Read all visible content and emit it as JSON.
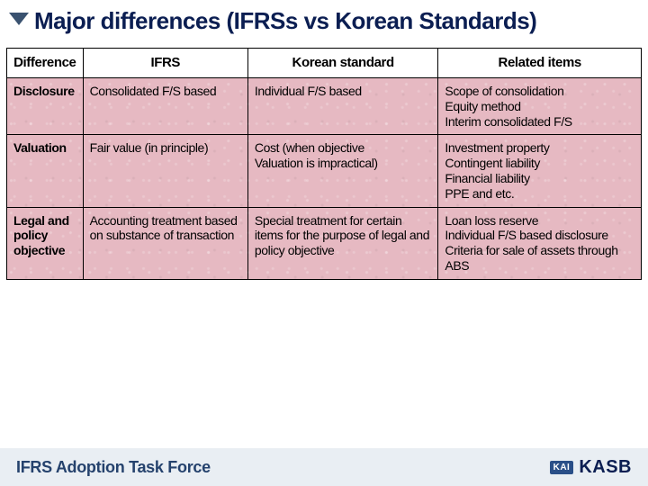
{
  "title": "Major differences (IFRSs vs Korean Standards)",
  "table": {
    "columns": [
      "Difference",
      "IFRS",
      "Korean standard",
      "Related items"
    ],
    "rows": [
      {
        "c0": "Disclosure",
        "c1": "Consolidated F/S based",
        "c2": "Individual F/S based",
        "c3": "Scope of consolidation\nEquity method\nInterim consolidated F/S"
      },
      {
        "c0": "Valuation",
        "c1": "Fair value (in principle)",
        "c2": "Cost (when objective\nValuation is impractical)",
        "c3": "Investment property\nContingent liability\nFinancial liability\nPPE and etc."
      },
      {
        "c0": "Legal and policy objective",
        "c1": "Accounting treatment based on substance of transaction",
        "c2": "Special treatment for certain items for the purpose of legal and policy objective",
        "c3": "Loan loss reserve\nIndividual F/S based disclosure\nCriteria for sale of assets through ABS"
      }
    ]
  },
  "footer": {
    "left": "IFRS Adoption Task Force",
    "badge": "KAI",
    "org": "KASB"
  },
  "colors": {
    "title_color": "#0b1e52",
    "arrow_color": "#3a5270",
    "row_bg": "#e6b9c2",
    "border": "#000000",
    "footer_bg": "#e9eef3",
    "footer_text": "#25426d"
  }
}
